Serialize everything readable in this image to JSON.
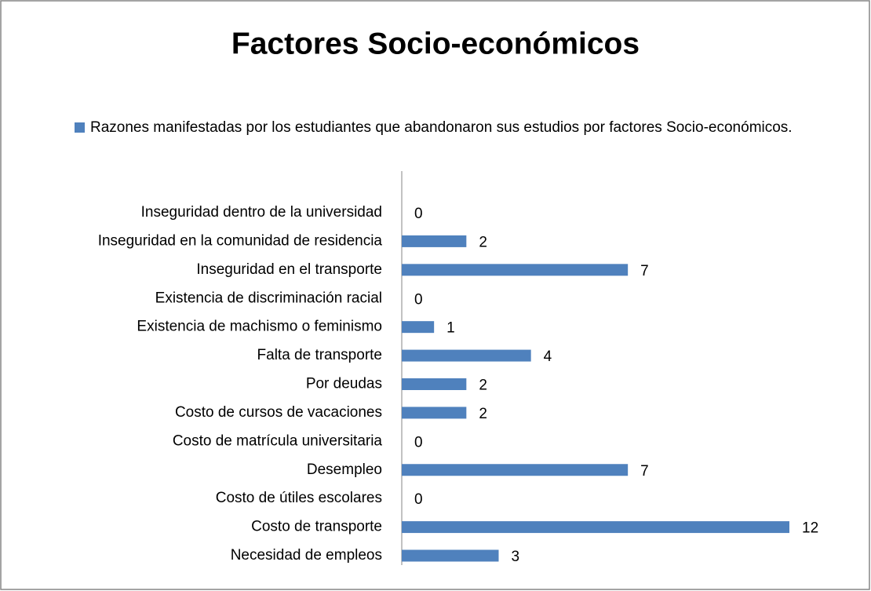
{
  "chart_data": {
    "type": "barh",
    "title": "Factores Socio-económicos",
    "series": [
      {
        "name": "Razones manifestadas por los estudiantes que abandonaron sus estudios por factores Socio-económicos.",
        "color": "#4f81bd",
        "values": [
          0,
          2,
          7,
          0,
          1,
          4,
          2,
          2,
          0,
          7,
          0,
          12,
          3
        ]
      }
    ],
    "categories": [
      "Inseguridad dentro de la universidad",
      "Inseguridad en la comunidad de residencia",
      "Inseguridad en el transporte",
      "Existencia de discriminación racial",
      "Existencia de machismo o feminismo",
      "Falta de transporte",
      "Por deudas",
      "Costo de cursos de vacaciones",
      "Costo de matrícula universitaria",
      "Desempleo",
      "Costo de útiles escolares",
      "Costo de transporte",
      "Necesidad de empleos"
    ]
  }
}
